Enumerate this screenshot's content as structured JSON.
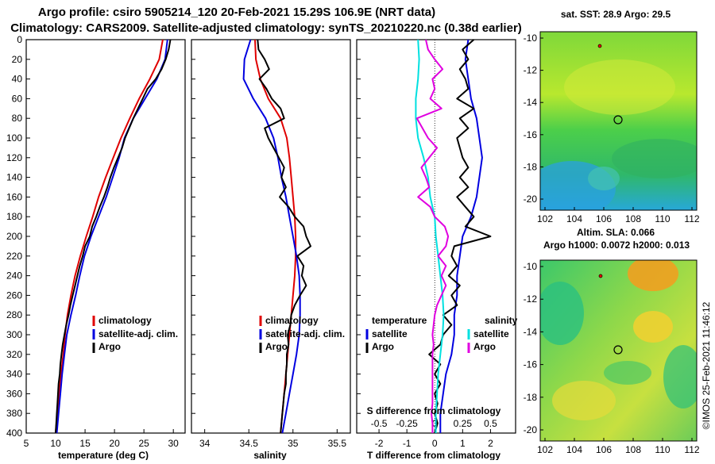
{
  "titles": {
    "line1": "Argo profile: csiro 5905214_120 20-Feb-2021 15.29S 106.9E (NRT data)",
    "line2": "Climatology: CARS2009. Satellite-adjusted climatology: synTS_20210220.nc (0.38d earlier)"
  },
  "depth_axis": {
    "ticks": [
      0,
      20,
      40,
      60,
      80,
      100,
      120,
      140,
      160,
      180,
      200,
      220,
      240,
      260,
      280,
      300,
      320,
      340,
      360,
      380,
      400
    ],
    "range": [
      0,
      400
    ]
  },
  "chart_data": [
    {
      "type": "line",
      "id": "temperature",
      "xlabel": "temperature (deg C)",
      "xlim": [
        5,
        32
      ],
      "xticks": [
        5,
        10,
        15,
        20,
        25,
        30
      ],
      "xtick_labels": [
        "5",
        "10",
        "15",
        "20",
        "25",
        "30"
      ],
      "ylim": [
        0,
        400
      ],
      "legend": [
        "climatology",
        "satellite-adj. clim.",
        "Argo"
      ],
      "series": [
        {
          "name": "climatology",
          "color": "#e00000",
          "depth": [
            0,
            20,
            40,
            60,
            80,
            100,
            120,
            140,
            160,
            180,
            200,
            220,
            240,
            260,
            280,
            300,
            320,
            340,
            360,
            380,
            400
          ],
          "values": [
            28.2,
            27.6,
            26.0,
            24.2,
            22.6,
            21.1,
            19.8,
            18.5,
            17.3,
            16.3,
            15.2,
            14.2,
            13.3,
            12.6,
            12.0,
            11.6,
            11.3,
            10.9,
            10.6,
            10.3,
            10.0
          ]
        },
        {
          "name": "satellite-adj. clim.",
          "color": "#0000e0",
          "depth": [
            0,
            20,
            40,
            60,
            80,
            100,
            120,
            140,
            160,
            180,
            200,
            220,
            240,
            260,
            280,
            300,
            320,
            340,
            360,
            380,
            400
          ],
          "values": [
            29.0,
            28.6,
            27.2,
            25.2,
            23.2,
            21.7,
            20.8,
            19.7,
            18.6,
            17.3,
            16.0,
            14.9,
            14.1,
            13.4,
            12.6,
            11.9,
            11.5,
            11.1,
            10.8,
            10.5,
            10.2
          ]
        },
        {
          "name": "Argo",
          "color": "#000000",
          "depth": [
            0,
            10,
            20,
            30,
            40,
            50,
            60,
            70,
            80,
            90,
            100,
            110,
            120,
            130,
            140,
            150,
            160,
            170,
            180,
            190,
            200,
            210,
            220,
            230,
            240,
            250,
            260,
            270,
            280,
            290,
            300,
            310,
            320,
            330,
            340,
            350,
            360,
            370,
            380,
            390,
            400
          ],
          "values": [
            29.5,
            29.2,
            28.7,
            28.0,
            27.0,
            25.6,
            24.8,
            24.0,
            23.2,
            22.5,
            21.8,
            21.3,
            20.6,
            19.9,
            19.3,
            18.8,
            18.2,
            17.5,
            16.9,
            16.2,
            15.8,
            15.0,
            14.6,
            14.1,
            13.7,
            13.3,
            12.9,
            12.5,
            12.2,
            11.8,
            11.5,
            11.2,
            11.0,
            10.8,
            10.7,
            10.5,
            10.4,
            10.3,
            10.2,
            10.1,
            10.0
          ]
        }
      ]
    },
    {
      "type": "line",
      "id": "salinity",
      "xlabel": "salinity",
      "xlim": [
        33.85,
        35.65
      ],
      "xticks": [
        34,
        34.5,
        35,
        35.5
      ],
      "xtick_labels": [
        "34",
        "34.5",
        "35",
        "35.5"
      ],
      "ylim": [
        0,
        400
      ],
      "legend": [
        "climatology",
        "satellite-adj. clim.",
        "Argo"
      ],
      "series": [
        {
          "name": "climatology",
          "color": "#e00000",
          "depth": [
            0,
            20,
            40,
            60,
            80,
            100,
            120,
            140,
            160,
            180,
            200,
            220,
            240,
            260,
            280,
            300,
            320,
            340,
            360,
            380,
            400
          ],
          "values": [
            34.57,
            34.58,
            34.63,
            34.72,
            34.86,
            34.93,
            34.96,
            34.98,
            35.0,
            35.02,
            35.03,
            35.03,
            35.02,
            35.0,
            34.98,
            34.96,
            34.94,
            34.92,
            34.9,
            34.88,
            34.86
          ]
        },
        {
          "name": "satellite-adj. clim.",
          "color": "#0000e0",
          "depth": [
            0,
            20,
            40,
            60,
            80,
            100,
            120,
            140,
            160,
            180,
            200,
            220,
            240,
            260,
            280,
            300,
            320,
            340,
            360,
            380,
            400
          ],
          "values": [
            34.52,
            34.45,
            34.44,
            34.55,
            34.69,
            34.78,
            34.83,
            34.87,
            34.92,
            34.96,
            35.0,
            35.04,
            35.07,
            35.08,
            35.08,
            35.07,
            35.04,
            35.0,
            34.96,
            34.92,
            34.88
          ]
        },
        {
          "name": "Argo",
          "color": "#000000",
          "depth": [
            0,
            10,
            20,
            30,
            40,
            50,
            60,
            70,
            80,
            90,
            100,
            110,
            120,
            130,
            140,
            150,
            160,
            170,
            180,
            190,
            200,
            210,
            220,
            230,
            240,
            250,
            260,
            270,
            280,
            290,
            300,
            310,
            320,
            330,
            340,
            350,
            360,
            370,
            380,
            390,
            400
          ],
          "values": [
            34.6,
            34.61,
            34.68,
            34.73,
            34.62,
            34.7,
            34.76,
            34.86,
            34.9,
            34.68,
            34.72,
            34.78,
            34.84,
            34.9,
            34.87,
            34.92,
            34.85,
            34.95,
            35.02,
            35.12,
            35.15,
            35.2,
            35.05,
            35.12,
            35.1,
            35.15,
            35.08,
            35.02,
            34.98,
            34.97,
            34.94,
            34.95,
            34.93,
            34.93,
            34.92,
            34.92,
            34.9,
            34.89,
            34.88,
            34.87,
            34.86
          ]
        }
      ]
    },
    {
      "type": "line",
      "id": "differences",
      "xlabel": "T difference from climatology",
      "xlim": [
        -2.8,
        2.9
      ],
      "xticks": [
        -2,
        -1,
        0,
        1,
        2
      ],
      "xtick_labels": [
        "-2",
        "-1",
        "0",
        "1",
        "2"
      ],
      "top_xlabel": "S difference from climatology",
      "top_xticks": [
        -0.5,
        -0.25,
        0,
        0.25,
        0.5
      ],
      "top_xtick_labels": [
        "-0.5",
        "-0.25",
        "0",
        "0.25",
        "0.5"
      ],
      "top_xlim": [
        -0.7,
        0.725
      ],
      "ylim": [
        0,
        400
      ],
      "legend_groups": [
        {
          "header": "temperature",
          "items": [
            "satellite",
            "Argo"
          ]
        },
        {
          "header": "salinity",
          "items": [
            "satellite",
            "Argo"
          ]
        }
      ],
      "series": [
        {
          "name": "temperature satellite",
          "color": "#0000e0",
          "axis": "T",
          "depth": [
            0,
            20,
            40,
            60,
            80,
            100,
            120,
            140,
            160,
            180,
            200,
            220,
            240,
            260,
            280,
            300,
            320,
            340,
            360,
            380,
            400
          ],
          "values": [
            1.2,
            1.1,
            1.2,
            1.3,
            1.5,
            1.6,
            1.7,
            1.6,
            1.5,
            1.3,
            1.0,
            0.9,
            0.8,
            0.8,
            0.7,
            0.7,
            0.6,
            0.4,
            0.3,
            0.2,
            0.2
          ]
        },
        {
          "name": "temperature Argo",
          "color": "#000000",
          "axis": "T",
          "depth": [
            0,
            10,
            20,
            30,
            40,
            50,
            60,
            70,
            80,
            90,
            100,
            110,
            120,
            130,
            140,
            150,
            160,
            170,
            180,
            190,
            200,
            210,
            220,
            230,
            240,
            250,
            260,
            270,
            280,
            290,
            300,
            310,
            320,
            330,
            340,
            350,
            360,
            370,
            380,
            390,
            400
          ],
          "values": [
            1.4,
            1.0,
            1.2,
            0.9,
            1.1,
            1.2,
            0.8,
            1.4,
            0.9,
            1.2,
            0.8,
            0.9,
            1.0,
            1.2,
            0.9,
            1.2,
            0.8,
            1.1,
            1.4,
            1.1,
            2.0,
            0.7,
            0.6,
            0.8,
            0.5,
            0.9,
            0.6,
            0.8,
            0.3,
            0.6,
            0.3,
            0.2,
            -0.2,
            0.2,
            0.0,
            0.2,
            0.0,
            0.1,
            0.0,
            0.1,
            0.0
          ]
        },
        {
          "name": "salinity satellite",
          "color": "#00e0e0",
          "axis": "S",
          "depth": [
            0,
            20,
            40,
            60,
            80,
            100,
            120,
            140,
            160,
            180,
            200,
            220,
            240,
            260,
            280,
            300,
            320,
            340,
            360,
            380,
            400
          ],
          "values": [
            -0.15,
            -0.14,
            -0.15,
            -0.17,
            -0.17,
            -0.15,
            -0.1,
            -0.06,
            -0.04,
            0.0,
            0.01,
            0.03,
            0.05,
            0.07,
            0.08,
            0.07,
            0.05,
            0.03,
            0.02,
            0.01,
            0.01
          ]
        },
        {
          "name": "salinity Argo",
          "color": "#e000e0",
          "axis": "S",
          "depth": [
            0,
            10,
            20,
            30,
            40,
            50,
            60,
            70,
            80,
            90,
            100,
            110,
            120,
            130,
            140,
            150,
            160,
            170,
            180,
            190,
            200,
            210,
            220,
            230,
            240,
            250,
            260,
            270,
            280,
            290,
            300,
            310,
            320,
            330,
            340,
            350,
            360,
            370,
            380,
            390,
            400
          ],
          "values": [
            -0.08,
            -0.06,
            0.0,
            0.07,
            -0.02,
            0.0,
            -0.04,
            0.06,
            -0.16,
            -0.11,
            -0.06,
            0.02,
            -0.05,
            -0.12,
            -0.08,
            -0.05,
            -0.15,
            -0.04,
            0.0,
            0.09,
            0.12,
            0.1,
            0.03,
            0.1,
            0.06,
            0.1,
            0.06,
            0.02,
            0.0,
            -0.01,
            -0.02,
            -0.01,
            -0.02,
            -0.02,
            -0.02,
            -0.02,
            -0.02,
            -0.02,
            -0.03,
            -0.02,
            -0.02
          ]
        }
      ]
    }
  ],
  "maps": {
    "sst": {
      "title": "sat. SST: 28.9 Argo: 29.5",
      "lon_ticks": [
        "102",
        "104",
        "106",
        "108",
        "110",
        "112"
      ],
      "lat_ticks": [
        "-10",
        "-12",
        "-14",
        "-16",
        "-18",
        "-20"
      ]
    },
    "sla": {
      "title1": "Altim. SLA: 0.066",
      "title2": "Argo h1000: 0.0072 h2000: 0.013",
      "lon_ticks": [
        "102",
        "104",
        "106",
        "108",
        "110",
        "112"
      ],
      "lat_ticks": [
        "-10",
        "-12",
        "-14",
        "-16",
        "-18",
        "-20"
      ]
    }
  },
  "legends": {
    "temperature": [
      "climatology",
      "satellite-adj. clim.",
      "Argo"
    ],
    "salinity": [
      "climatology",
      "satellite-adj. clim.",
      "Argo"
    ],
    "diff_temperature_header": "temperature",
    "diff_salinity_header": "salinity",
    "satellite": "satellite",
    "argo": "Argo"
  },
  "footer": {
    "credit": "©IMOS 25-Feb-2021 11:46:12"
  }
}
